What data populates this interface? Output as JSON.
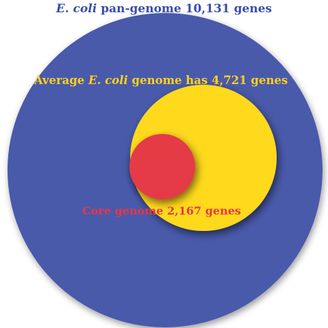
{
  "pan_genome": {
    "label_italic": "E. coli",
    "label_rest": " pan-genome 10,131 genes"
  },
  "average_genome": {
    "label_pre": "Average ",
    "label_italic": "E. coli",
    "label_post": " genome has 4,721 genes"
  },
  "core_genome": {
    "label": "Core genome 2,167 genes"
  },
  "colors": {
    "pan_genome": "#4a5aab",
    "average_genome": "#ffd91a",
    "core_genome": "#e43a47",
    "title_text": "#3b4ea7",
    "average_text": "#ffd21c",
    "core_text": "#e83744"
  }
}
